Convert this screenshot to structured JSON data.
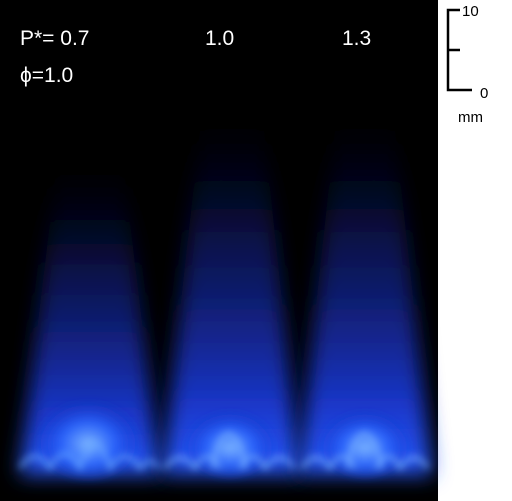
{
  "panels": [
    {
      "label": "P*= 0.7"
    },
    {
      "label": "1.0"
    },
    {
      "label": "1.3"
    }
  ],
  "equivalence_ratio": "ϕ=1.0",
  "scale_bar": {
    "top": "10",
    "bottom": "0",
    "unit": "mm"
  }
}
